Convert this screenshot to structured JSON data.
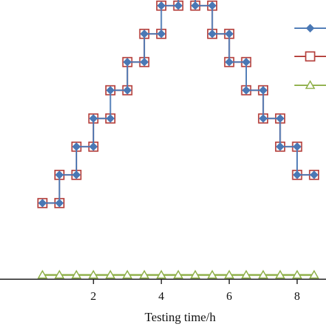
{
  "chart_data": {
    "type": "line",
    "title": "",
    "xlabel": "Testing time/h",
    "ylabel": "",
    "xlim": [
      -0.75,
      8.85
    ],
    "ylim": [
      -0.1,
      9.8
    ],
    "x_ticks": [
      2,
      4,
      6,
      8
    ],
    "x_tick_labels": [
      "2",
      "4",
      "6",
      "8"
    ],
    "grid": false,
    "legend_position": "top-right",
    "series": [
      {
        "name": "",
        "color": "#4a78b5",
        "marker": "diamond",
        "x": [
          0.5,
          1.0,
          1.0,
          1.5,
          1.5,
          2.0,
          2.0,
          2.5,
          2.5,
          3.0,
          3.0,
          3.5,
          3.5,
          4.0,
          4.0,
          4.5,
          4.5,
          5.0,
          5.0,
          5.5,
          5.5,
          6.0,
          6.0,
          6.5,
          6.5,
          7.0,
          7.0,
          7.5,
          7.5,
          8.0,
          8.0,
          8.5
        ],
        "y": [
          2.6,
          2.6,
          3.6,
          3.6,
          4.6,
          4.6,
          5.6,
          5.6,
          6.6,
          6.6,
          7.6,
          7.6,
          8.6,
          8.6,
          9.6,
          9.6,
          10.6,
          10.6,
          9.6,
          9.6,
          8.6,
          8.6,
          7.6,
          7.6,
          6.6,
          6.6,
          5.6,
          5.6,
          4.6,
          4.6,
          3.6,
          3.6
        ]
      },
      {
        "name": "",
        "color": "#b5403c",
        "marker": "square-open",
        "x": [
          0.5,
          1.0,
          1.0,
          1.5,
          1.5,
          2.0,
          2.0,
          2.5,
          2.5,
          3.0,
          3.0,
          3.5,
          3.5,
          4.0,
          4.0,
          4.5,
          4.5,
          5.0,
          5.0,
          5.5,
          5.5,
          6.0,
          6.0,
          6.5,
          6.5,
          7.0,
          7.0,
          7.5,
          7.5,
          8.0,
          8.0,
          8.5
        ],
        "y": [
          2.6,
          2.6,
          3.6,
          3.6,
          4.6,
          4.6,
          5.6,
          5.6,
          6.6,
          6.6,
          7.6,
          7.6,
          8.6,
          8.6,
          9.6,
          9.6,
          10.6,
          10.6,
          9.6,
          9.6,
          8.6,
          8.6,
          7.6,
          7.6,
          6.6,
          6.6,
          5.6,
          5.6,
          4.6,
          4.6,
          3.6,
          3.6
        ]
      },
      {
        "name": "",
        "color": "#8fb04a",
        "marker": "triangle-open",
        "x": [
          0.5,
          1.0,
          1.5,
          2.0,
          2.5,
          3.0,
          3.5,
          4.0,
          4.5,
          5.0,
          5.5,
          6.0,
          6.5,
          7.0,
          7.5,
          8.0,
          8.5
        ],
        "y": [
          0.05,
          0.05,
          0.05,
          0.05,
          0.05,
          0.05,
          0.05,
          0.05,
          0.05,
          0.05,
          0.05,
          0.05,
          0.05,
          0.05,
          0.05,
          0.05,
          0.05
        ]
      }
    ]
  }
}
